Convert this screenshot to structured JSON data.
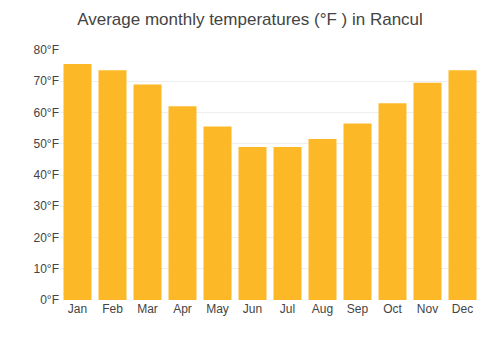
{
  "chart_data": {
    "type": "bar",
    "title": "Average monthly temperatures (°F ) in Rancul",
    "categories": [
      "Jan",
      "Feb",
      "Mar",
      "Apr",
      "May",
      "Jun",
      "Jul",
      "Aug",
      "Sep",
      "Oct",
      "Nov",
      "Dec"
    ],
    "values": [
      75.5,
      73.5,
      69.0,
      62.0,
      55.5,
      49.0,
      49.0,
      51.5,
      56.5,
      63.0,
      69.5,
      73.5
    ],
    "color": "#FDB827",
    "ylim": [
      0,
      80
    ],
    "yticks": [
      {
        "value": 0,
        "label": "0°F"
      },
      {
        "value": 10,
        "label": "10°F"
      },
      {
        "value": 20,
        "label": "20°F"
      },
      {
        "value": 30,
        "label": "30°F"
      },
      {
        "value": 40,
        "label": "40°F"
      },
      {
        "value": 50,
        "label": "50°F"
      },
      {
        "value": 60,
        "label": "60°F"
      },
      {
        "value": 70,
        "label": "70°F"
      },
      {
        "value": 80,
        "label": "80°F"
      }
    ],
    "grid": true
  }
}
